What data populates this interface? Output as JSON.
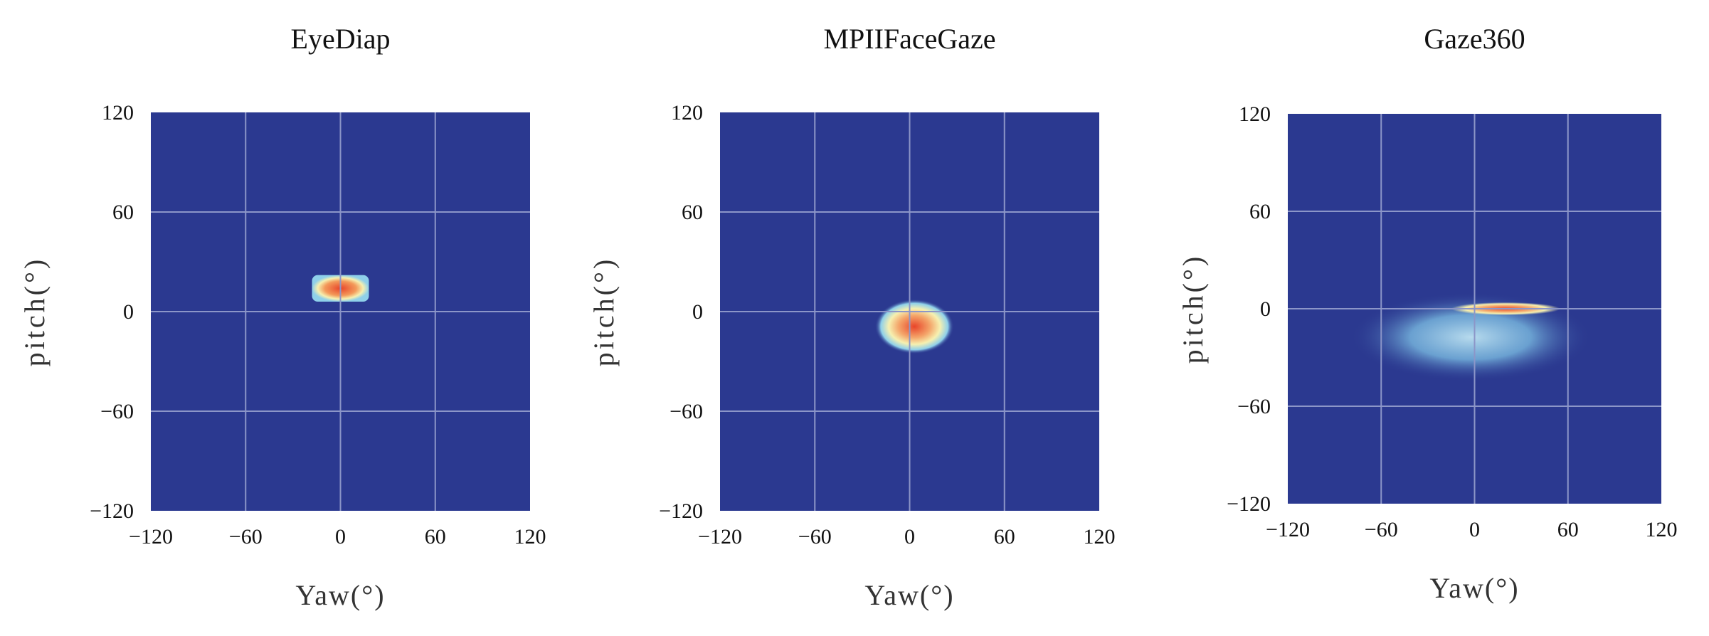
{
  "chart_data": [
    {
      "type": "heatmap",
      "title": "EyeDiap",
      "xlabel": "Yaw(°)",
      "ylabel": "pitch(°)",
      "xlim": [
        -120,
        120
      ],
      "ylim": [
        -120,
        120
      ],
      "xticks": [
        "−120",
        "−60",
        "0",
        "60",
        "120"
      ],
      "yticks": [
        "120",
        "60",
        "0",
        "−60",
        "−120"
      ],
      "grid": true,
      "density": [
        {
          "x_range": [
            -18,
            18
          ],
          "y_range": [
            6,
            22
          ],
          "level": "high"
        }
      ]
    },
    {
      "type": "heatmap",
      "title": "MPIIFaceGaze",
      "xlabel": "Yaw(°)",
      "ylabel": "pitch(°)",
      "xlim": [
        -120,
        120
      ],
      "ylim": [
        -120,
        120
      ],
      "xticks": [
        "−120",
        "−60",
        "0",
        "60",
        "120"
      ],
      "yticks": [
        "120",
        "60",
        "0",
        "−60",
        "−120"
      ],
      "grid": true,
      "density": [
        {
          "x_range": [
            -22,
            28
          ],
          "y_range": [
            -28,
            5
          ],
          "level": "high",
          "peak": [
            3,
            -9
          ]
        }
      ]
    },
    {
      "type": "heatmap",
      "title": "Gaze360",
      "xlabel": "Yaw(°)",
      "ylabel": "pitch(°)",
      "xlim": [
        -120,
        120
      ],
      "ylim": [
        -120,
        120
      ],
      "xticks": [
        "−120",
        "−60",
        "0",
        "60",
        "120"
      ],
      "yticks": [
        "120",
        "60",
        "0",
        "−60",
        "−120"
      ],
      "grid": true,
      "density": [
        {
          "x_range": [
            -80,
            75
          ],
          "y_range": [
            -45,
            10
          ],
          "level": "low"
        },
        {
          "x_range": [
            -30,
            40
          ],
          "y_range": [
            -4,
            4
          ],
          "level": "high",
          "peak": [
            20,
            0
          ]
        }
      ]
    }
  ],
  "colors": {
    "background": "#2b3990",
    "grid": "#8c96c8",
    "low_density": "#7fc3e6",
    "mid_density": "#f6f0b0",
    "high_density": "#e8452a"
  }
}
